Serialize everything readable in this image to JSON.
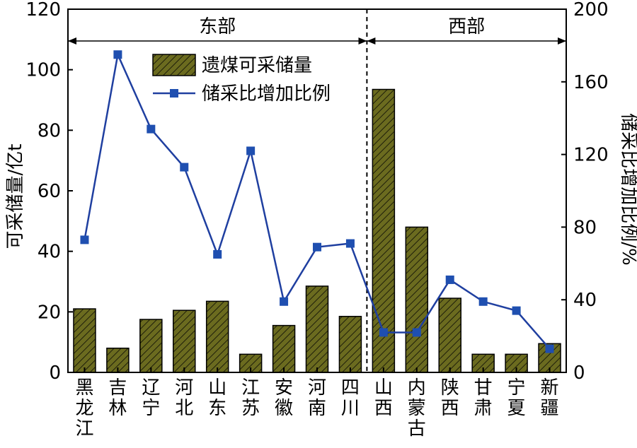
{
  "chart_data": {
    "type": "bar",
    "categories": [
      "黑龙江",
      "吉林",
      "辽宁",
      "河北",
      "山东",
      "江苏",
      "安徽",
      "河南",
      "四川",
      "山西",
      "内蒙古",
      "陕西",
      "甘肃",
      "宁夏",
      "新疆"
    ],
    "series": [
      {
        "name": "遗煤可采储量",
        "type": "bar",
        "axis": "left",
        "values": [
          21,
          8,
          17.5,
          20.5,
          23.5,
          6,
          15.5,
          28.5,
          18.5,
          93.5,
          48,
          24.5,
          6,
          6,
          9.5
        ]
      },
      {
        "name": "储采比增加比例",
        "type": "line",
        "axis": "right",
        "values": [
          73,
          175,
          134,
          113,
          65,
          122,
          39,
          69,
          71,
          22,
          22,
          51,
          39,
          34,
          13
        ]
      }
    ],
    "ylabel": "可采储量/亿t",
    "y2label": "储采比增加比例/%",
    "ylim": [
      0,
      120
    ],
    "y2lim": [
      0,
      200
    ],
    "yticks": [
      "0",
      "20",
      "40",
      "60",
      "80",
      "100",
      "120"
    ],
    "y2ticks": [
      "0",
      "40",
      "80",
      "120",
      "160",
      "200"
    ],
    "regions": [
      {
        "label": "东部",
        "start_index": 0,
        "end_index": 8
      },
      {
        "label": "西部",
        "start_index": 9,
        "end_index": 14
      }
    ],
    "colors": {
      "bar_fill": "#6b6b1f",
      "bar_hatch": "#1e1e0a",
      "line": "#1f3fa0",
      "marker": "#1f4fb0"
    },
    "grid": false,
    "legend_position": "top-left"
  }
}
